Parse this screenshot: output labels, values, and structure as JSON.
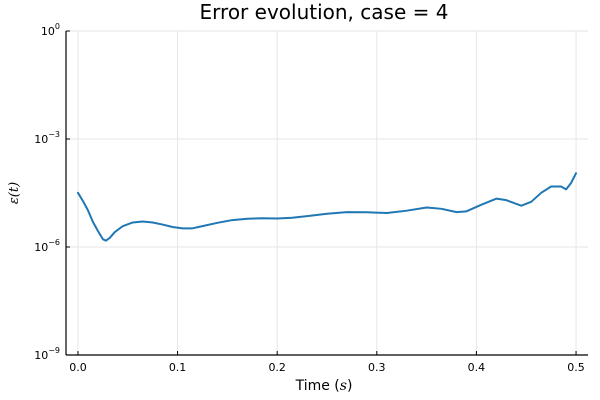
{
  "chart_data": {
    "type": "line",
    "title": "Error evolution, case = 4",
    "xlabel": "Time (s)",
    "xlabel_parts": {
      "prefix": "Time (",
      "var": "s",
      "suffix": ")"
    },
    "ylabel": "ε(t)",
    "yscale": "log",
    "xlim": [
      -0.012,
      0.512
    ],
    "ylim": [
      1e-09,
      1
    ],
    "xticks": [
      0.0,
      0.1,
      0.2,
      0.3,
      0.4,
      0.5
    ],
    "xtick_labels": [
      "0.0",
      "0.1",
      "0.2",
      "0.3",
      "0.4",
      "0.5"
    ],
    "yticks": [
      1e-09,
      1e-06,
      0.001,
      1
    ],
    "ytick_labels": [
      {
        "base": "10",
        "exp": "−9"
      },
      {
        "base": "10",
        "exp": "−6"
      },
      {
        "base": "10",
        "exp": "−3"
      },
      {
        "base": "10",
        "exp": "0"
      }
    ],
    "grid": true,
    "legend": "none",
    "series": [
      {
        "color": "#1f77b4",
        "x": [
          0.0,
          0.005,
          0.01,
          0.015,
          0.02,
          0.025,
          0.028,
          0.032,
          0.037,
          0.045,
          0.055,
          0.065,
          0.075,
          0.085,
          0.095,
          0.105,
          0.115,
          0.125,
          0.14,
          0.155,
          0.17,
          0.185,
          0.2,
          0.215,
          0.23,
          0.25,
          0.27,
          0.29,
          0.31,
          0.33,
          0.35,
          0.365,
          0.38,
          0.39,
          0.405,
          0.42,
          0.43,
          0.445,
          0.455,
          0.465,
          0.475,
          0.485,
          0.49,
          0.495,
          0.5
        ],
        "y": [
          3.2e-05,
          1.9e-05,
          1.05e-05,
          5e-06,
          2.8e-06,
          1.65e-06,
          1.5e-06,
          1.8e-06,
          2.6e-06,
          3.8e-06,
          4.8e-06,
          5.1e-06,
          4.8e-06,
          4.2e-06,
          3.6e-06,
          3.3e-06,
          3.3e-06,
          3.8e-06,
          4.7e-06,
          5.6e-06,
          6.1e-06,
          6.3e-06,
          6.2e-06,
          6.5e-06,
          7.2e-06,
          8.4e-06,
          9.3e-06,
          9.2e-06,
          8.8e-06,
          1.02e-05,
          1.25e-05,
          1.15e-05,
          9.3e-06,
          9.8e-06,
          1.5e-05,
          2.2e-05,
          2e-05,
          1.4e-05,
          1.8e-05,
          3.2e-05,
          4.8e-05,
          4.8e-05,
          4e-05,
          6e-05,
          0.000112
        ]
      }
    ]
  }
}
